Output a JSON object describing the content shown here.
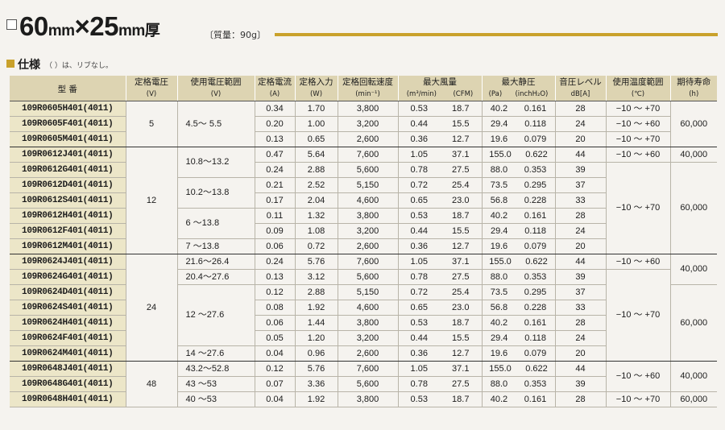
{
  "header": {
    "title_main": "60",
    "title_u1": "mm",
    "title_x": "×25",
    "title_u2": "mm",
    "title_end": "厚",
    "mass": "〔質量：90g〕",
    "spec_title": "仕様",
    "spec_note": "（ ）は、リブなし。"
  },
  "columns": {
    "model": "型 番",
    "volt": "定格電圧",
    "volt_u": "(V)",
    "range": "使用電圧範囲",
    "range_u": "(V)",
    "cur": "定格電流",
    "cur_u": "(A)",
    "pow": "定格入力",
    "pow_u": "(W)",
    "speed": "定格回転速度",
    "speed_u": "(min⁻¹)",
    "air": "最大風量",
    "air_u1": "(m³/min)",
    "air_u2": "(CFM)",
    "press": "最大静圧",
    "press_u1": "(Pa)",
    "press_u2": "(inchH₂O)",
    "noise": "音圧レベル",
    "noise_u": "dB[A]",
    "temp": "使用温度範囲",
    "temp_u": "(℃)",
    "life": "期待寿命",
    "life_u": "(h)"
  },
  "rows": [
    {
      "model": "109R0605H401(4011)",
      "volt": "5",
      "range": "4.5～ 5.5",
      "cur": "0.34",
      "pow": "1.70",
      "speed": "3,800",
      "m3": "0.53",
      "cfm": "18.7",
      "pa": "40.2",
      "inch": "0.161",
      "db": "28",
      "temp": "−10 ～ +70",
      "life": "60,000"
    },
    {
      "model": "109R0605F401(4011)",
      "cur": "0.20",
      "pow": "1.00",
      "speed": "3,200",
      "m3": "0.44",
      "cfm": "15.5",
      "pa": "29.4",
      "inch": "0.118",
      "db": "24",
      "temp": "−10 ～ +60"
    },
    {
      "model": "109R0605M401(4011)",
      "cur": "0.13",
      "pow": "0.65",
      "speed": "2,600",
      "m3": "0.36",
      "cfm": "12.7",
      "pa": "19.6",
      "inch": "0.079",
      "db": "20",
      "temp": "−10 ～ +70"
    },
    {
      "model": "109R0612J401(4011)",
      "volt": "12",
      "range": "10.8～13.2",
      "cur": "0.47",
      "pow": "5.64",
      "speed": "7,600",
      "m3": "1.05",
      "cfm": "37.1",
      "pa": "155.0",
      "inch": "0.622",
      "db": "44",
      "temp": "−10 ～ +60",
      "life": "40,000"
    },
    {
      "model": "109R0612G401(4011)",
      "cur": "0.24",
      "pow": "2.88",
      "speed": "5,600",
      "m3": "0.78",
      "cfm": "27.5",
      "pa": "88.0",
      "inch": "0.353",
      "db": "39",
      "temp": "−10 ～ +70",
      "life": "60,000"
    },
    {
      "model": "109R0612D401(4011)",
      "range": "10.2～13.8",
      "cur": "0.21",
      "pow": "2.52",
      "speed": "5,150",
      "m3": "0.72",
      "cfm": "25.4",
      "pa": "73.5",
      "inch": "0.295",
      "db": "37"
    },
    {
      "model": "109R0612S401(4011)",
      "cur": "0.17",
      "pow": "2.04",
      "speed": "4,600",
      "m3": "0.65",
      "cfm": "23.0",
      "pa": "56.8",
      "inch": "0.228",
      "db": "33"
    },
    {
      "model": "109R0612H401(4011)",
      "range": "6 ～13.8",
      "cur": "0.11",
      "pow": "1.32",
      "speed": "3,800",
      "m3": "0.53",
      "cfm": "18.7",
      "pa": "40.2",
      "inch": "0.161",
      "db": "28"
    },
    {
      "model": "109R0612F401(4011)",
      "cur": "0.09",
      "pow": "1.08",
      "speed": "3,200",
      "m3": "0.44",
      "cfm": "15.5",
      "pa": "29.4",
      "inch": "0.118",
      "db": "24"
    },
    {
      "model": "109R0612M401(4011)",
      "range": "7 ～13.8",
      "cur": "0.06",
      "pow": "0.72",
      "speed": "2,600",
      "m3": "0.36",
      "cfm": "12.7",
      "pa": "19.6",
      "inch": "0.079",
      "db": "20"
    },
    {
      "model": "109R0624J401(4011)",
      "volt": "24",
      "range": "21.6～26.4",
      "cur": "0.24",
      "pow": "5.76",
      "speed": "7,600",
      "m3": "1.05",
      "cfm": "37.1",
      "pa": "155.0",
      "inch": "0.622",
      "db": "44",
      "temp": "−10 ～ +60",
      "life": "40,000"
    },
    {
      "model": "109R0624G401(4011)",
      "range": "20.4～27.6",
      "cur": "0.13",
      "pow": "3.12",
      "speed": "5,600",
      "m3": "0.78",
      "cfm": "27.5",
      "pa": "88.0",
      "inch": "0.353",
      "db": "39",
      "temp": "−10 ～ +70"
    },
    {
      "model": "109R0624D401(4011)",
      "range": "12 ～27.6",
      "cur": "0.12",
      "pow": "2.88",
      "speed": "5,150",
      "m3": "0.72",
      "cfm": "25.4",
      "pa": "73.5",
      "inch": "0.295",
      "db": "37",
      "life": "60,000"
    },
    {
      "model": "109R0624S401(4011)",
      "cur": "0.08",
      "pow": "1.92",
      "speed": "4,600",
      "m3": "0.65",
      "cfm": "23.0",
      "pa": "56.8",
      "inch": "0.228",
      "db": "33"
    },
    {
      "model": "109R0624H401(4011)",
      "cur": "0.06",
      "pow": "1.44",
      "speed": "3,800",
      "m3": "0.53",
      "cfm": "18.7",
      "pa": "40.2",
      "inch": "0.161",
      "db": "28"
    },
    {
      "model": "109R0624F401(4011)",
      "cur": "0.05",
      "pow": "1.20",
      "speed": "3,200",
      "m3": "0.44",
      "cfm": "15.5",
      "pa": "29.4",
      "inch": "0.118",
      "db": "24"
    },
    {
      "model": "109R0624M401(4011)",
      "range": "14 ～27.6",
      "cur": "0.04",
      "pow": "0.96",
      "speed": "2,600",
      "m3": "0.36",
      "cfm": "12.7",
      "pa": "19.6",
      "inch": "0.079",
      "db": "20"
    },
    {
      "model": "109R0648J401(4011)",
      "volt": "48",
      "range": "43.2～52.8",
      "cur": "0.12",
      "pow": "5.76",
      "speed": "7,600",
      "m3": "1.05",
      "cfm": "37.1",
      "pa": "155.0",
      "inch": "0.622",
      "db": "44",
      "temp": "−10 ～ +60",
      "life": "40,000"
    },
    {
      "model": "109R0648G401(4011)",
      "range": "43 ～53",
      "cur": "0.07",
      "pow": "3.36",
      "speed": "5,600",
      "m3": "0.78",
      "cfm": "27.5",
      "pa": "88.0",
      "inch": "0.353",
      "db": "39"
    },
    {
      "model": "109R0648H401(4011)",
      "range": "40 ～53",
      "cur": "0.04",
      "pow": "1.92",
      "speed": "3,800",
      "m3": "0.53",
      "cfm": "18.7",
      "pa": "40.2",
      "inch": "0.161",
      "db": "28",
      "temp": "−10 ～ +70",
      "life": "60,000"
    }
  ]
}
